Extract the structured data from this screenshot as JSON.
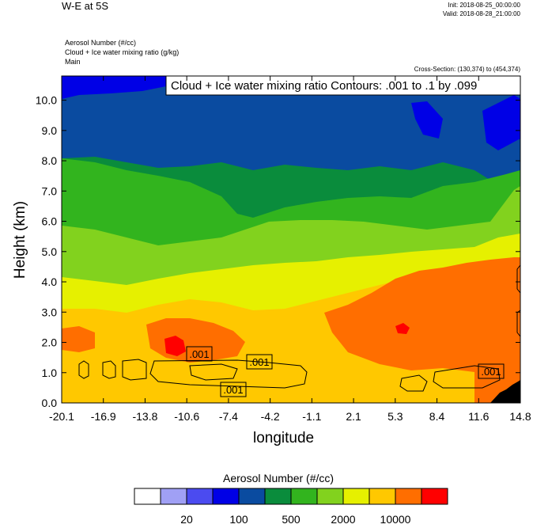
{
  "header": {
    "title": "W-E at 5S",
    "init": "Init: 2018-08-25_00:00:00",
    "valid": "Valid: 2018-08-28_21:00:00",
    "field1": "Aerosol Number   (#/cc)",
    "field2": "Cloud + Ice water mixing ratio   (g/kg)",
    "field3": "Main",
    "cross_section": "Cross-Section: (130,374) to (454,374)"
  },
  "chart_data": {
    "type": "heatmap",
    "title": "W-E at 5S",
    "xlabel": "longitude",
    "ylabel": "Height (km)",
    "x_ticks": [
      "-20.1",
      "-16.9",
      "-13.8",
      "-10.6",
      "-7.4",
      "-4.2",
      "-1.1",
      "2.1",
      "5.3",
      "8.4",
      "11.6",
      "14.8"
    ],
    "y_ticks": [
      "0.0",
      "1.0",
      "2.0",
      "3.0",
      "4.0",
      "5.0",
      "6.0",
      "7.0",
      "8.0",
      "9.0",
      "10.0"
    ],
    "xlim": [
      -20.1,
      14.8
    ],
    "ylim": [
      0,
      10.8
    ],
    "contour_info": "Cloud + Ice water mixing ratio Contours: .001 to .1 by .099",
    "contour_labels": [
      ".001",
      ".001",
      ".001",
      ".001"
    ],
    "colorbar": {
      "title": "Aerosol Number  (#/cc)",
      "colors": [
        "#ffffff",
        "#a0a0f5",
        "#4b4bf0",
        "#0000e6",
        "#0a4ba0",
        "#0a8c3c",
        "#32b41e",
        "#82d21e",
        "#e6f000",
        "#ffc800",
        "#ff6e00",
        "#ff0000"
      ],
      "tick_labels": [
        "20",
        "100",
        "500",
        "2000",
        "10000"
      ]
    }
  }
}
